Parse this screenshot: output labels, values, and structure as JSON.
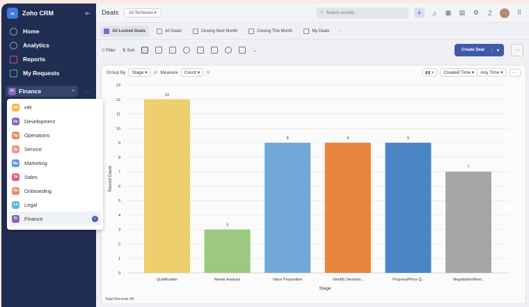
{
  "sidebar": {
    "app_name": "Zoho CRM",
    "nav": [
      {
        "label": "Home",
        "icon": "home-icon"
      },
      {
        "label": "Analytics",
        "icon": "analytics-icon"
      },
      {
        "label": "Reports",
        "icon": "reports-icon"
      },
      {
        "label": "My Requests",
        "icon": "requests-icon"
      }
    ],
    "workspace": {
      "label": "Finance",
      "badge": "Fi"
    },
    "workspace_menu": [
      {
        "label": "HR",
        "badge": "HR",
        "color": "#f5b63c"
      },
      {
        "label": "Development",
        "badge": "De",
        "color": "#8a65b8"
      },
      {
        "label": "Operations",
        "badge": "Op",
        "color": "#ee8a55"
      },
      {
        "label": "Service",
        "badge": "Se",
        "color": "#f0908c"
      },
      {
        "label": "Marketing",
        "badge": "Ma",
        "color": "#5d9ad8"
      },
      {
        "label": "Sales",
        "badge": "Sa",
        "color": "#ea5a7a"
      },
      {
        "label": "Onboarding",
        "badge": "On",
        "color": "#ee8a6a"
      },
      {
        "label": "Legal",
        "badge": "Le",
        "color": "#5bb8e8"
      },
      {
        "label": "Finance",
        "badge": "Fi",
        "color": "#8a65b8",
        "selected": true
      }
    ]
  },
  "header": {
    "title": "Deals",
    "territory": "All Territories",
    "search_placeholder": "Search records"
  },
  "tabs": [
    "All Locked Deals",
    "All Deals",
    "Closing Next Month",
    "Closing This Month",
    "My Deals"
  ],
  "toolbar": {
    "filter": "Filter",
    "sort": "Sort",
    "create": "Create Deal"
  },
  "controls": {
    "group_by_label": "Group By",
    "group_by": "Stage",
    "measure_label": "Measure",
    "measure": "Count",
    "time_field": "Created Time",
    "time_range": "Any Time"
  },
  "footer": "Total Records 49",
  "chart_data": {
    "type": "bar",
    "categories": [
      "Qualification",
      "Needs Analysis",
      "Value Proposition",
      "Identify Decision..",
      "Proposal/Price Q..",
      "Negotiation/Revi.."
    ],
    "values": [
      12,
      3,
      9,
      9,
      9,
      7
    ],
    "colors": [
      "#eecf6d",
      "#9ac97f",
      "#70a8d8",
      "#e8843c",
      "#4a85c4",
      "#a6a6a6"
    ],
    "xlabel": "Stage",
    "ylabel": "Record Count",
    "ylim": [
      0,
      13
    ],
    "yticks": [
      0,
      1,
      2,
      3,
      4,
      5,
      6,
      7,
      8,
      9,
      10,
      11,
      12,
      13
    ],
    "grid": true
  }
}
